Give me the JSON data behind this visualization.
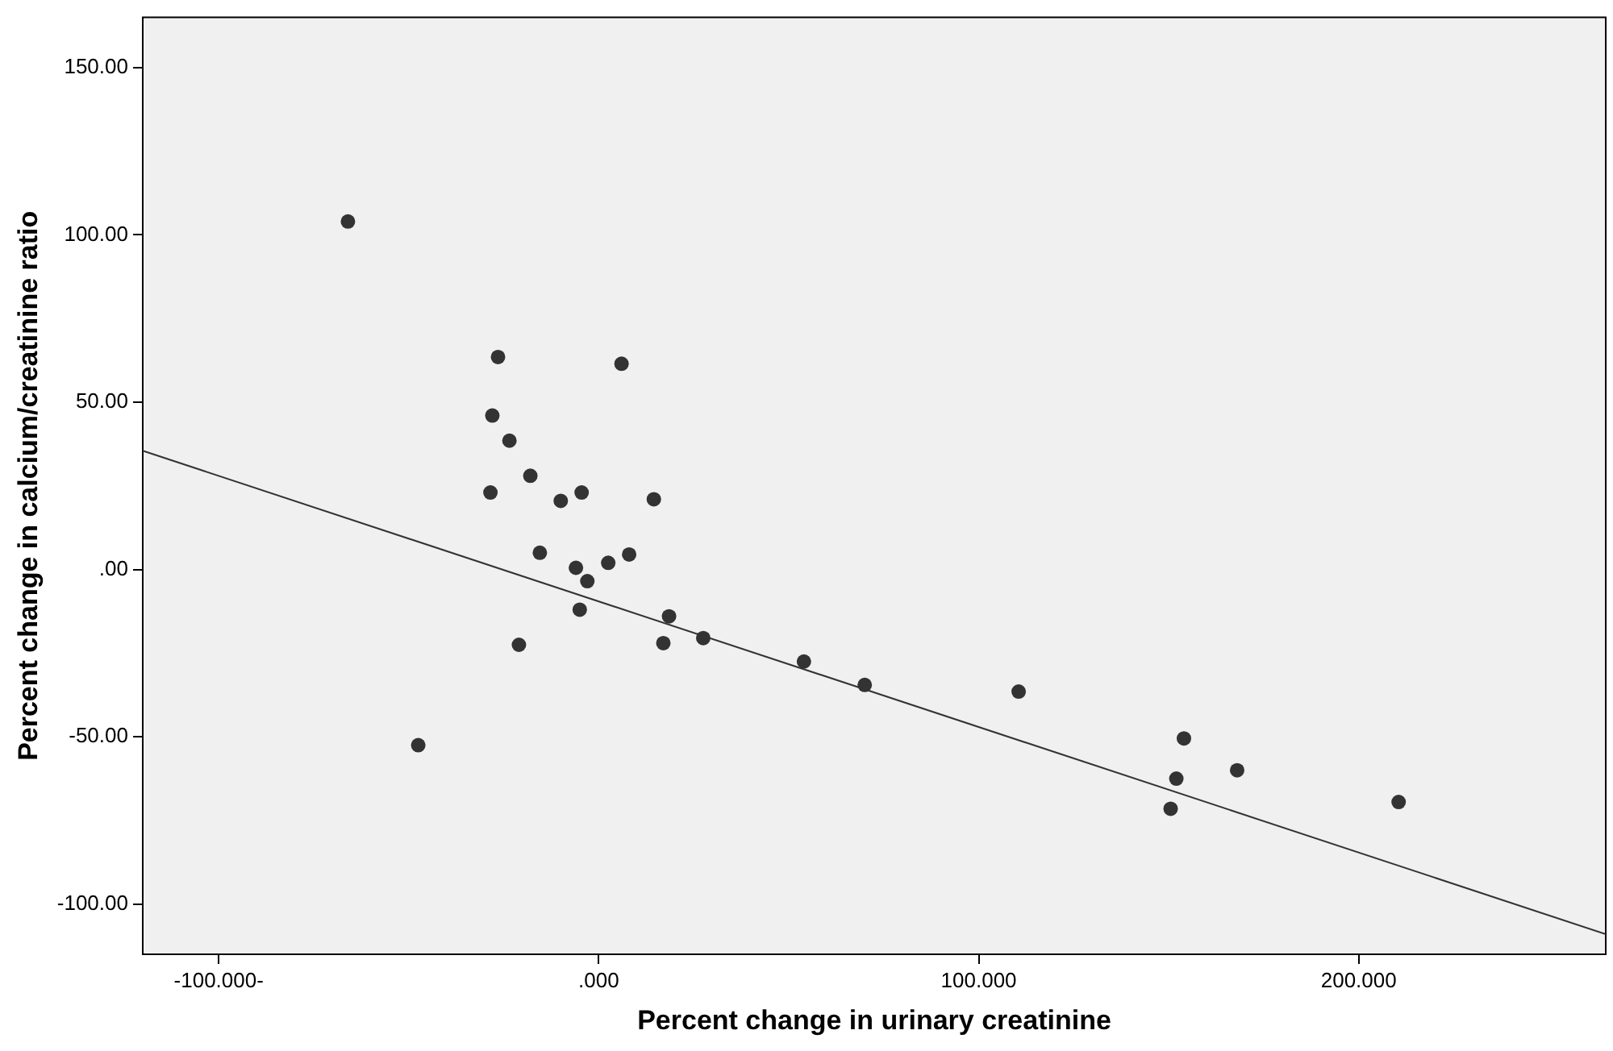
{
  "chart_data": {
    "type": "scatter",
    "xlabel": "Percent change in urinary creatinine",
    "ylabel": "Percent change in calcium/creatinine ratio",
    "xlim": [
      -120,
      265
    ],
    "ylim": [
      -115,
      165
    ],
    "xticks": [
      {
        "value": -100,
        "label": "-100.000-"
      },
      {
        "value": 0,
        "label": ".000"
      },
      {
        "value": 100,
        "label": "100.000"
      },
      {
        "value": 200,
        "label": "200.000"
      }
    ],
    "yticks": [
      {
        "value": -100,
        "label": "-100.00"
      },
      {
        "value": -50,
        "label": "-50.00"
      },
      {
        "value": 0,
        "label": ".00"
      },
      {
        "value": 50,
        "label": "50.00"
      },
      {
        "value": 100,
        "label": "100.00"
      },
      {
        "value": 150,
        "label": "150.00"
      }
    ],
    "grid": false,
    "legend": false,
    "series": [
      {
        "marker": "circle",
        "color": "#333333",
        "x": [
          -66,
          -26.5,
          6,
          -28,
          -23.5,
          -18,
          -28.5,
          -10,
          -4.5,
          14.5,
          -15.5,
          2.5,
          8,
          -6,
          -3,
          -5,
          18.5,
          -21,
          17,
          27.5,
          54,
          70,
          110.5,
          -47.5,
          154,
          168,
          152,
          150.5,
          210.5
        ],
        "values": [
          104,
          63.5,
          61.5,
          46,
          38.5,
          28,
          23,
          20.5,
          23,
          21,
          5,
          2,
          4.5,
          0.5,
          -3.5,
          -12,
          -14,
          -22.5,
          -22,
          -20.5,
          -27.5,
          -34.5,
          -36.5,
          -52.5,
          -50.5,
          -60,
          -62.5,
          -71.5,
          -69.5
        ]
      },
      {
        "type": "line",
        "marker": "none",
        "color": "#333333",
        "x": [
          -120,
          265
        ],
        "values": [
          35.5,
          -109
        ]
      }
    ]
  }
}
